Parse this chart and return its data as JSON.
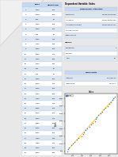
{
  "bg_color": "#e8e8e8",
  "page_color": "#ffffff",
  "table_header_color": "#c6d9f1",
  "table_alt_color": "#dce6f1",
  "table_border_color": "#9dc3e6",
  "table_headers": [
    "",
    "Sales",
    "Advertising"
  ],
  "table_rows": [
    [
      "1",
      "1000",
      "100"
    ],
    [
      "2",
      "1200",
      "150"
    ],
    [
      "3",
      "900",
      "80"
    ],
    [
      "4",
      "1100",
      "120"
    ],
    [
      "5",
      "1300",
      "160"
    ],
    [
      "6",
      "950",
      "90"
    ],
    [
      "7",
      "1050",
      "110"
    ],
    [
      "8",
      "1150",
      "130"
    ],
    [
      "9",
      "1250",
      "155"
    ],
    [
      "10",
      "1350",
      "170"
    ],
    [
      "11",
      "1400",
      "180"
    ],
    [
      "12",
      "1450",
      "190"
    ],
    [
      "13",
      "800",
      "70"
    ],
    [
      "14",
      "850",
      "75"
    ],
    [
      "15",
      "1500",
      "200"
    ],
    [
      "16",
      "1550",
      "210"
    ],
    [
      "17",
      "1600",
      "220"
    ],
    [
      "18",
      "1650",
      "225"
    ],
    [
      "19",
      "1700",
      "230"
    ],
    [
      "20",
      "1750",
      "240"
    ],
    [
      "21",
      "1800",
      "250"
    ],
    [
      "22",
      "1850",
      "260"
    ],
    [
      "23",
      "1900",
      "270"
    ],
    [
      "24",
      "1950",
      "280"
    ],
    [
      "25",
      "2000",
      "290"
    ],
    [
      "26",
      "2050",
      "300"
    ],
    [
      "27",
      "2100",
      "310"
    ],
    [
      "28",
      "2150",
      "315"
    ],
    [
      "29",
      "2200",
      "320"
    ],
    [
      "30",
      "2250",
      "330"
    ]
  ],
  "dep_var_label": "Dependent Variable: Sales",
  "reg_stats_label": "Regression Statistics",
  "reg_items": [
    [
      "Multiple R",
      "0.994864564836"
    ],
    [
      "R Square",
      "0.989755451364"
    ],
    [
      "Adjusted R Square",
      "0.989375540417"
    ],
    [
      "Standard Error",
      ""
    ],
    [
      "Observations",
      ""
    ]
  ],
  "anova_label": "ANOVA",
  "anova_rows": [
    [
      "Regression",
      "1"
    ],
    [
      "Residual",
      ""
    ],
    [
      "Total",
      "29"
    ]
  ],
  "coef_label": "Coefficients",
  "coef_rows": [
    [
      "Intercept",
      "-187.80174"
    ],
    [
      "Advertising",
      "7.60174"
    ]
  ],
  "scatter_x": [
    100,
    150,
    80,
    120,
    160,
    90,
    110,
    130,
    155,
    170,
    180,
    190,
    70,
    75,
    200,
    210,
    220,
    225,
    230,
    240,
    250,
    260,
    270,
    280,
    290,
    300,
    310,
    315,
    320,
    330
  ],
  "scatter_y": [
    1000,
    1200,
    900,
    1100,
    1300,
    950,
    1050,
    1150,
    1250,
    1350,
    1400,
    1450,
    800,
    850,
    1500,
    1550,
    1600,
    1650,
    1700,
    1750,
    1800,
    1850,
    1900,
    1950,
    2000,
    2050,
    2100,
    2150,
    2200,
    2250
  ],
  "dot_color": "#4472c4",
  "line_color": "#ffc000",
  "scatter_title": "Sales",
  "scatter_legend": "Sales",
  "scatter_ylabel": "Sales"
}
